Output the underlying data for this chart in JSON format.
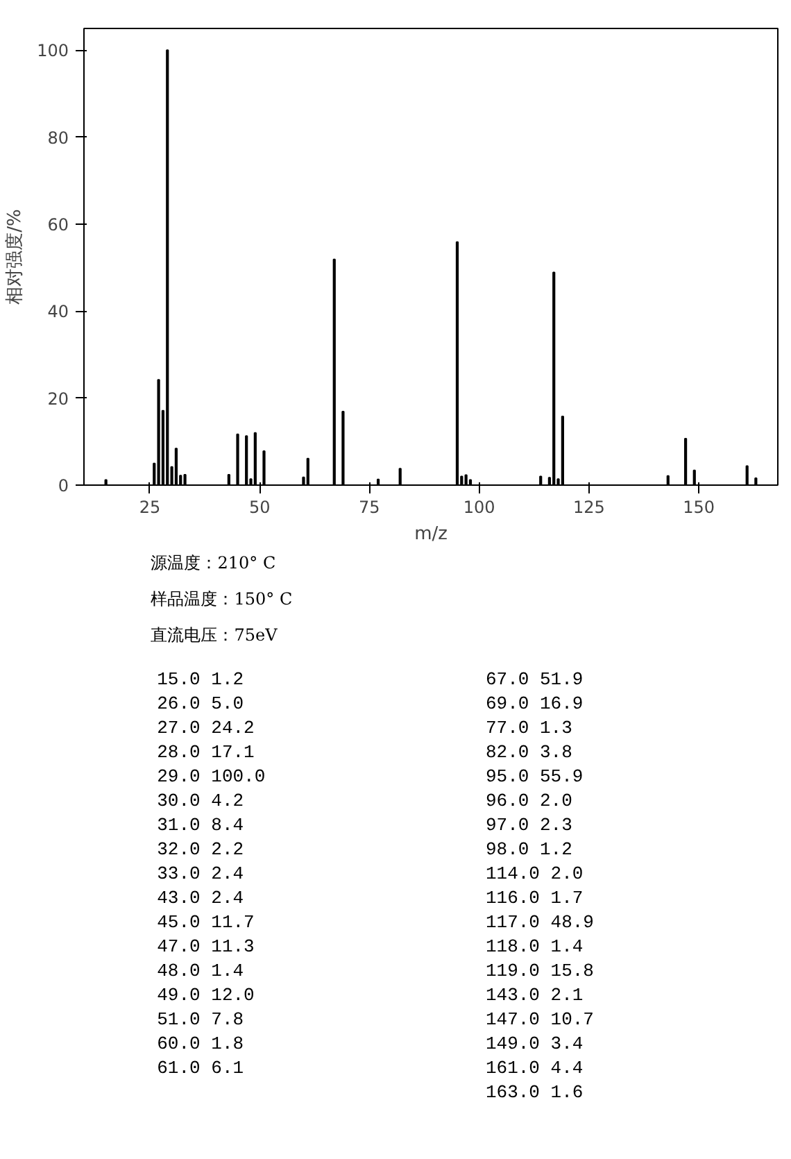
{
  "chart_data": {
    "type": "bar",
    "xlabel": "m/z",
    "ylabel": "相对强度/%",
    "color": "#000000",
    "x": [
      15,
      26,
      27,
      28,
      29,
      30,
      31,
      32,
      33,
      43,
      45,
      47,
      48,
      49,
      51,
      60,
      61,
      67,
      69,
      77,
      82,
      95,
      96,
      97,
      98,
      114,
      116,
      117,
      118,
      119,
      143,
      147,
      149,
      161,
      163
    ],
    "values": [
      1.2,
      5.0,
      24.2,
      17.1,
      100.0,
      4.2,
      8.4,
      2.2,
      2.4,
      2.4,
      11.7,
      11.3,
      1.4,
      12.0,
      7.8,
      1.8,
      6.1,
      51.9,
      16.9,
      1.3,
      3.8,
      55.9,
      2.0,
      2.3,
      1.2,
      2.0,
      1.7,
      48.9,
      1.4,
      15.8,
      2.1,
      10.7,
      3.4,
      4.4,
      1.6
    ],
    "xlim": [
      10,
      168
    ],
    "ylim": [
      0,
      105
    ],
    "xticks": [
      25,
      50,
      75,
      100,
      125,
      150
    ],
    "yticks": [
      0,
      20,
      40,
      60,
      80,
      100
    ],
    "grid": false,
    "annotations": [
      "源温度：210° C",
      "样品温度：150° C",
      "直流电压：75eV",
      "15.0 1.2",
      "26.0 5.0",
      "27.0 24.2",
      "28.0 17.1",
      "29.0 100.0",
      "30.0 4.2",
      "31.0 8.4",
      "32.0 2.2",
      "33.0 2.4",
      "43.0 2.4",
      "45.0 11.7",
      "47.0 11.3",
      "48.0 1.4",
      "49.0 12.0",
      "51.0 7.8",
      "60.0 1.8",
      "61.0 6.1",
      "67.0 51.9",
      "69.0 16.9",
      "77.0 1.3",
      "82.0 3.8",
      "95.0 55.9",
      "96.0 2.0",
      "97.0 2.3",
      "98.0 1.2",
      "114.0 2.0",
      "116.0 1.7",
      "117.0 48.9",
      "118.0 1.4",
      "119.0 15.8",
      "143.0 2.1",
      "147.0 10.7",
      "149.0 3.4",
      "161.0 4.4",
      "163.0 1.6"
    ]
  }
}
